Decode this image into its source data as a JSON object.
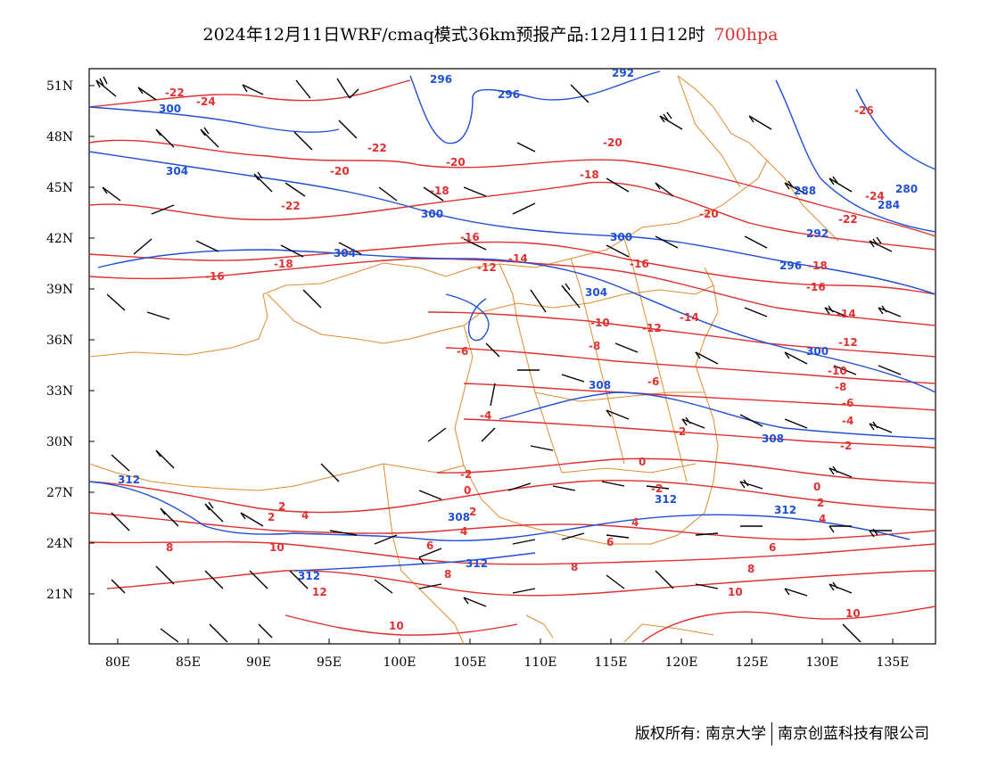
{
  "title": {
    "main": "2024年12月11日WRF/cmaq模式36km预报产品:12月11日12时",
    "level": "700hpa",
    "level_color": "#e03030"
  },
  "axes": {
    "lat_labels": [
      "51N",
      "48N",
      "45N",
      "42N",
      "39N",
      "36N",
      "33N",
      "30N",
      "27N",
      "24N",
      "21N"
    ],
    "lon_labels": [
      "80E",
      "85E",
      "90E",
      "95E",
      "100E",
      "105E",
      "110E",
      "115E",
      "120E",
      "125E",
      "130E",
      "135E"
    ]
  },
  "colors": {
    "temperature_contour": "#e03030",
    "geopotential_contour": "#1e4fd6",
    "boundaries": "#e08a2e",
    "wind_barbs": "#000000"
  },
  "temperature_labels": [
    "-22",
    "-24",
    "-22",
    "-20",
    "-20",
    "-18",
    "-20",
    "-22",
    "-18",
    "-16",
    "-18",
    "-16",
    "-14",
    "-12",
    "-16",
    "-10",
    "-12",
    "-14",
    "-8",
    "-6",
    "-6",
    "-4",
    "-2",
    "0",
    "-2",
    "-2",
    "0",
    "2",
    "2",
    "4",
    "4",
    "2",
    "4",
    "6",
    "8",
    "6",
    "8",
    "10",
    "12",
    "10",
    "8",
    "10",
    "-26",
    "-24",
    "-22",
    "-20",
    "-18",
    "-16",
    "-14",
    "-12",
    "-10",
    "-8",
    "-6",
    "-4",
    "-2",
    "0",
    "2",
    "4",
    "6",
    "8",
    "10"
  ],
  "geopotential_labels": [
    "296",
    "296",
    "292",
    "300",
    "304",
    "300",
    "304",
    "300",
    "304",
    "296",
    "292",
    "288",
    "284",
    "280",
    "300",
    "308",
    "308",
    "312",
    "308",
    "312",
    "312",
    "312",
    "312"
  ],
  "footer": {
    "left": "版权所有: 南京大学",
    "right": "南京创蓝科技有限公司"
  }
}
